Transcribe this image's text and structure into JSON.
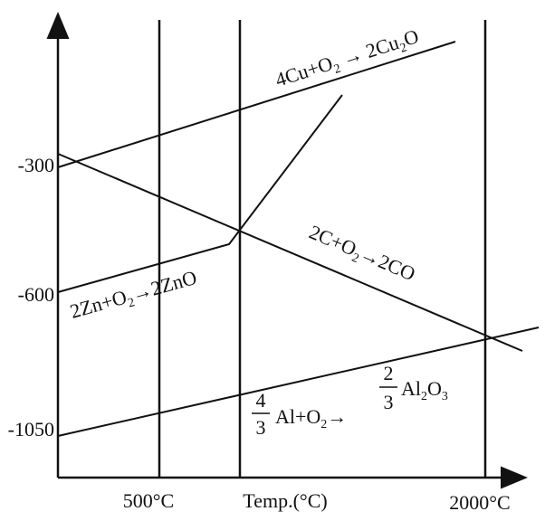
{
  "y_axis": {
    "ticks": [
      "-300",
      "-600",
      "-1050"
    ]
  },
  "x_axis": {
    "label": "Temp.(°C)",
    "ticks": [
      "500°C",
      "2000°C"
    ]
  },
  "reactions": {
    "copper": [
      "4Cu+O",
      "2",
      " → 2Cu",
      "2",
      "O"
    ],
    "carbon": [
      "2C+O",
      "2",
      "→2CO"
    ],
    "zinc": [
      "2Zn+O",
      "2",
      "→2ZnO"
    ],
    "aluminium": {
      "coef1_num": "4",
      "coef1_den": "3",
      "middle": [
        "Al+O",
        "2",
        "→"
      ],
      "coef2_num": "2",
      "coef2_den": "3",
      "product": [
        "Al",
        "2",
        "O",
        "3"
      ]
    }
  }
}
